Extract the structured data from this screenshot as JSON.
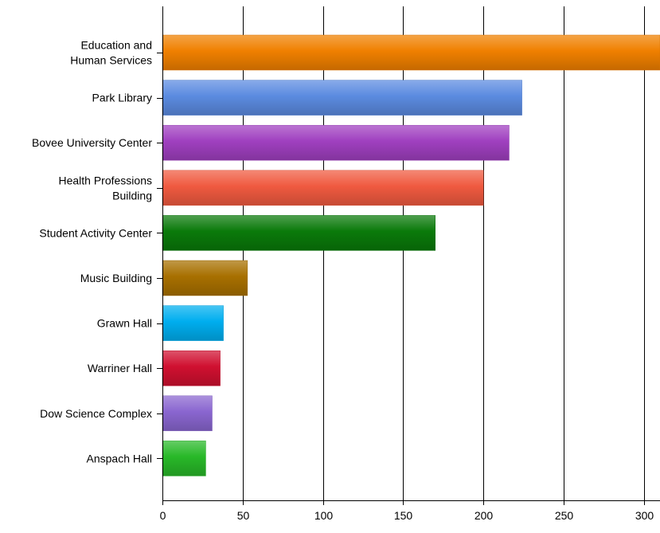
{
  "chart_data": {
    "type": "bar",
    "orientation": "horizontal",
    "title": "",
    "xlabel": "",
    "ylabel": "",
    "xlim": [
      0,
      310
    ],
    "x_ticks": [
      0,
      50,
      100,
      150,
      200,
      250,
      300
    ],
    "grid": "vertical lines at each x tick",
    "legend": "none",
    "categories": [
      {
        "label_lines": [
          "Education and",
          "Human Services"
        ],
        "value": 310,
        "color": "#F08000"
      },
      {
        "label_lines": [
          "Park Library"
        ],
        "value": 224,
        "color": "#5B8BE0"
      },
      {
        "label_lines": [
          "Bovee University Center"
        ],
        "value": 216,
        "color": "#A040C0"
      },
      {
        "label_lines": [
          "Health Professions",
          "Building"
        ],
        "value": 200,
        "color": "#F05A40"
      },
      {
        "label_lines": [
          "Student Activity Center"
        ],
        "value": 170,
        "color": "#0A7A0A"
      },
      {
        "label_lines": [
          "Music Building"
        ],
        "value": 53,
        "color": "#A87000"
      },
      {
        "label_lines": [
          "Grawn Hall"
        ],
        "value": 38,
        "color": "#00AEEF"
      },
      {
        "label_lines": [
          "Warriner Hall"
        ],
        "value": 36,
        "color": "#D01030"
      },
      {
        "label_lines": [
          "Dow Science Complex"
        ],
        "value": 31,
        "color": "#8A66D0"
      },
      {
        "label_lines": [
          "Anspach Hall"
        ],
        "value": 27,
        "color": "#28B828"
      }
    ]
  }
}
